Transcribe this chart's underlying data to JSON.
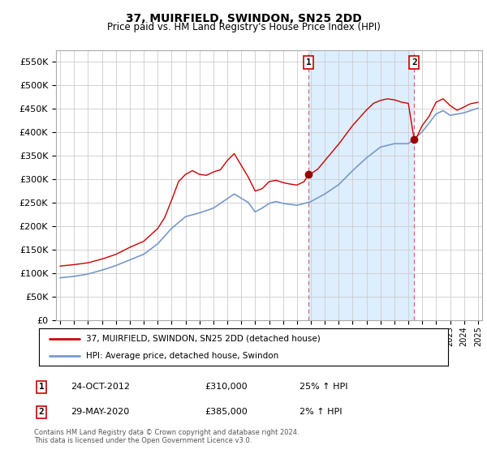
{
  "title": "37, MUIRFIELD, SWINDON, SN25 2DD",
  "subtitle": "Price paid vs. HM Land Registry's House Price Index (HPI)",
  "ytick_values": [
    0,
    50000,
    100000,
    150000,
    200000,
    250000,
    300000,
    350000,
    400000,
    450000,
    500000,
    550000
  ],
  "ylim": [
    0,
    575000
  ],
  "sale1_date": 2012.82,
  "sale1_price": 310000,
  "sale2_date": 2020.42,
  "sale2_price": 385000,
  "vline_color": "#dd6666",
  "highlight_color": "#ddeeff",
  "marker_color": "#990000",
  "legend_label1": "37, MUIRFIELD, SWINDON, SN25 2DD (detached house)",
  "legend_label2": "HPI: Average price, detached house, Swindon",
  "line1_color": "#cc0000",
  "line2_color": "#7799cc",
  "footer1": "Contains HM Land Registry data © Crown copyright and database right 2024.",
  "footer2": "This data is licensed under the Open Government Licence v3.0.",
  "table_row1": [
    "1",
    "24-OCT-2012",
    "£310,000",
    "25% ↑ HPI"
  ],
  "table_row2": [
    "2",
    "29-MAY-2020",
    "£385,000",
    "2% ↑ HPI"
  ],
  "background_color": "#ffffff",
  "grid_color": "#cccccc",
  "xlim_left": 1994.7,
  "xlim_right": 2025.3
}
